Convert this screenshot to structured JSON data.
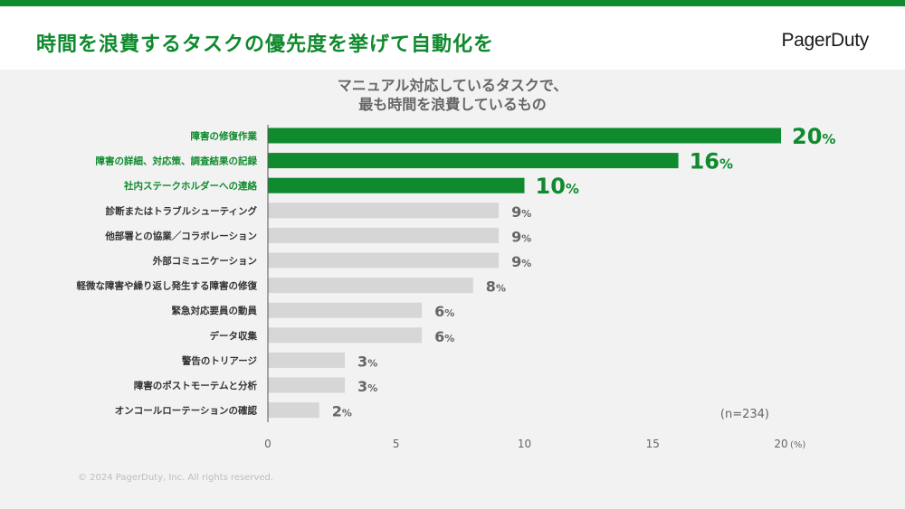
{
  "header": {
    "title": "時間を浪費するタスクの優先度を挙げて自動化を",
    "logo": "PagerDuty"
  },
  "footer": {
    "copyright": "© 2024 PagerDuty, Inc. All rights reserved."
  },
  "colors": {
    "brand_green": "#0f8a2e",
    "bar_gray": "#d6d6d6",
    "text_gray": "#666666"
  },
  "chart_data": {
    "type": "bar",
    "orientation": "horizontal",
    "title_lines": [
      "マニュアル対応しているタスクで、",
      "最も時間を浪費しているもの"
    ],
    "categories": [
      "障害の修復作業",
      "障害の詳細、対応策、調査結果の記録",
      "社内ステークホルダーへの連絡",
      "診断またはトラブルシューティング",
      "他部署との協業／コラボレーション",
      "外部コミュニケーション",
      "軽微な障害や繰り返し発生する障害の修復",
      "緊急対応要員の動員",
      "データ収集",
      "警告のトリアージ",
      "障害のポストモーテムと分析",
      "オンコールローテーションの確認"
    ],
    "values": [
      20,
      16,
      10,
      9,
      9,
      9,
      8,
      6,
      6,
      3,
      3,
      2
    ],
    "highlighted_count": 3,
    "value_suffix": "%",
    "xlim": [
      0,
      20
    ],
    "xticks": [
      "0",
      "5",
      "10",
      "15",
      "20"
    ],
    "x_unit": "(%)",
    "sample_note": "(n=234)",
    "grid": false
  }
}
